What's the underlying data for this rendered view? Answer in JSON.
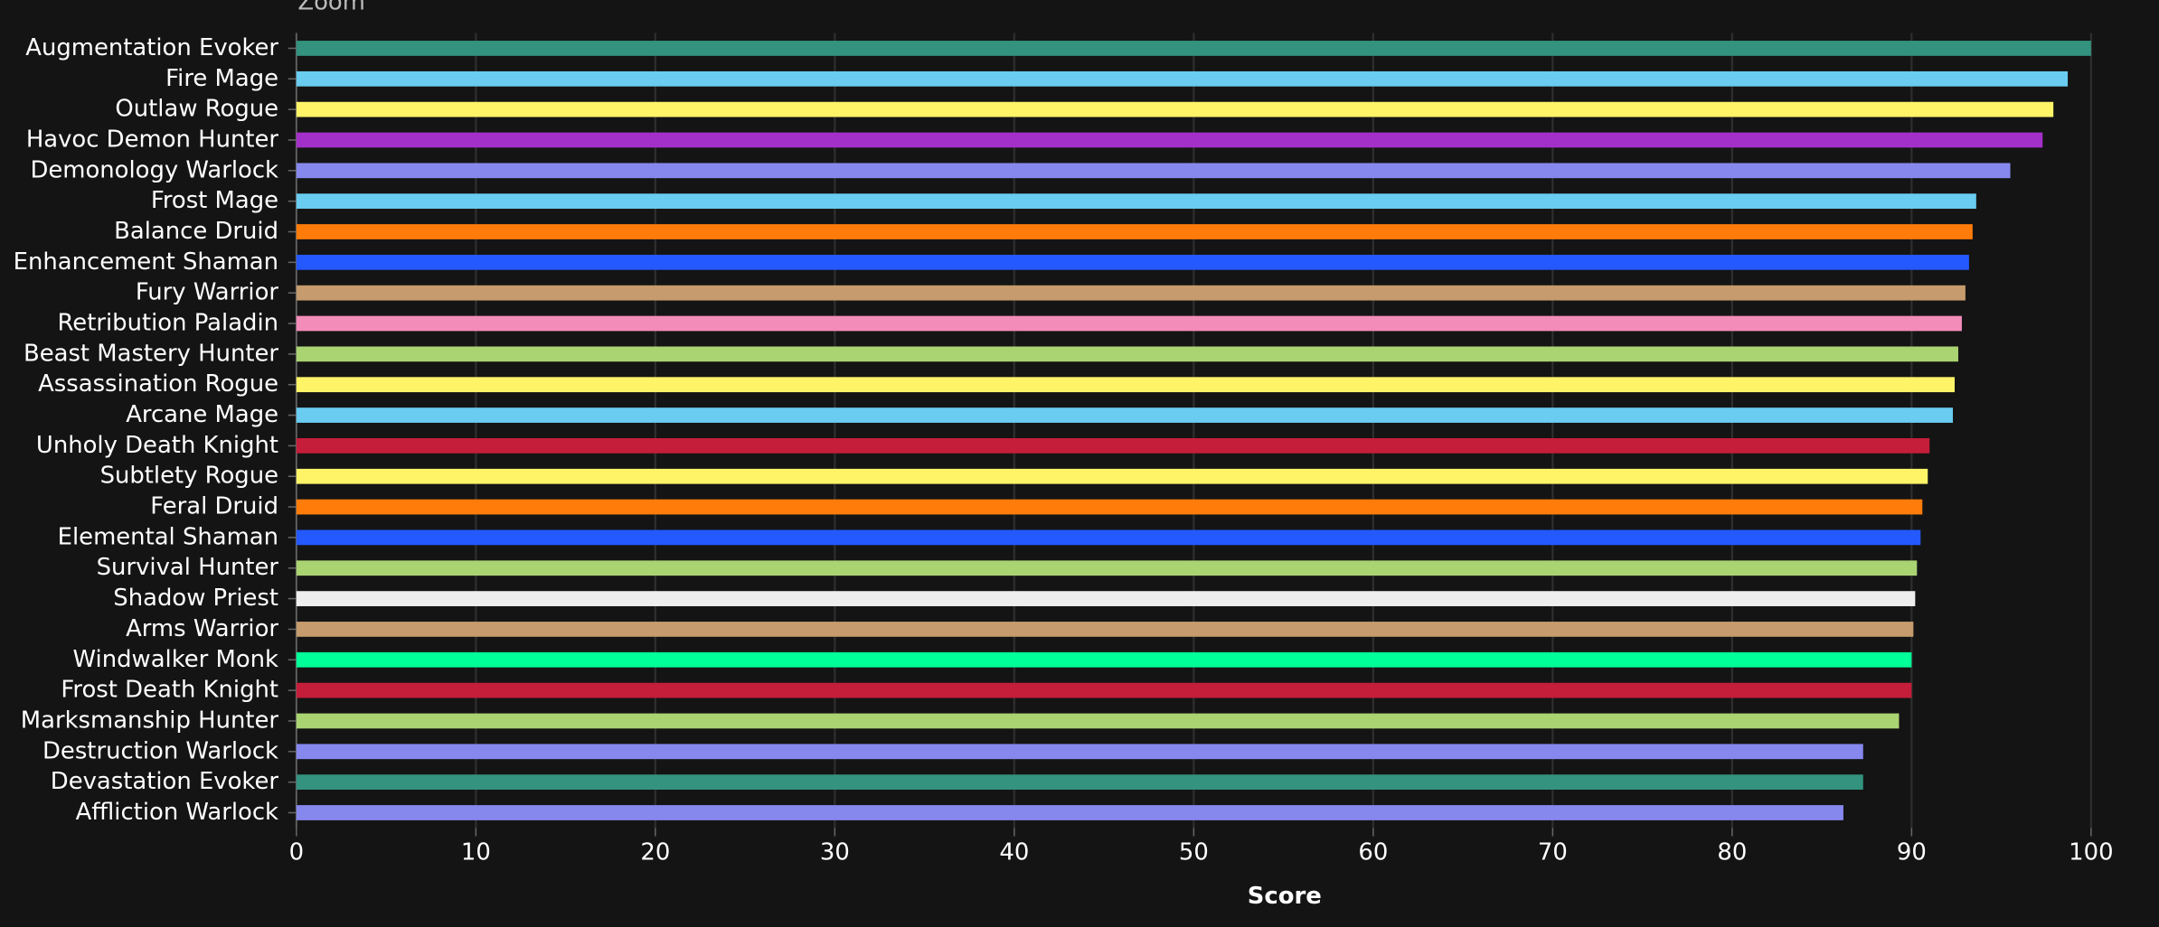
{
  "zoom_label": "Zoom",
  "chart_data": {
    "type": "barh",
    "x_label": "Score",
    "categories": [
      "Augmentation Evoker",
      "Fire Mage",
      "Outlaw Rogue",
      "Havoc Demon Hunter",
      "Demonology Warlock",
      "Frost Mage",
      "Balance Druid",
      "Enhancement Shaman",
      "Fury Warrior",
      "Retribution Paladin",
      "Beast Mastery Hunter",
      "Assassination Rogue",
      "Arcane Mage",
      "Unholy Death Knight",
      "Subtlety Rogue",
      "Feral Druid",
      "Elemental Shaman",
      "Survival Hunter",
      "Shadow Priest",
      "Arms Warrior",
      "Windwalker Monk",
      "Frost Death Knight",
      "Marksmanship Hunter",
      "Destruction Warlock",
      "Devastation Evoker",
      "Affliction Warlock"
    ],
    "values": [
      100,
      98.7,
      97.9,
      97.3,
      95.5,
      93.6,
      93.4,
      93.2,
      93.0,
      92.8,
      92.6,
      92.4,
      92.3,
      91.0,
      90.9,
      90.6,
      90.5,
      90.3,
      90.2,
      90.1,
      90.0,
      90.0,
      89.3,
      87.3,
      87.3,
      86.2
    ],
    "colors": [
      "#33937f",
      "#69ccf0",
      "#fff468",
      "#a330c9",
      "#8788ee",
      "#69ccf0",
      "#ff7c0a",
      "#2459ff",
      "#c69b6d",
      "#f48cba",
      "#aad372",
      "#fff468",
      "#69ccf0",
      "#c41e3a",
      "#fff468",
      "#ff7c0a",
      "#2459ff",
      "#aad372",
      "#eeeeee",
      "#c69b6d",
      "#00ff98",
      "#c41e3a",
      "#aad372",
      "#8788ee",
      "#33937f",
      "#8788ee"
    ],
    "xlim": [
      0,
      100
    ],
    "xticks": [
      0,
      10,
      20,
      30,
      40,
      50,
      60,
      70,
      80,
      90,
      100
    ],
    "grid": true
  }
}
